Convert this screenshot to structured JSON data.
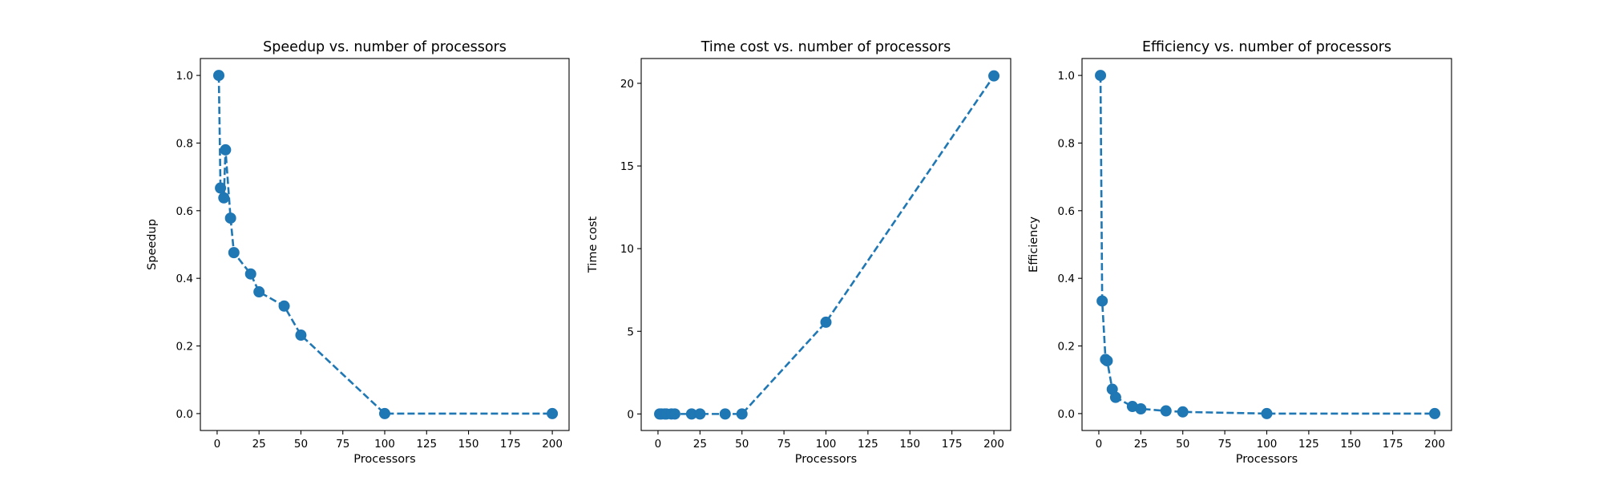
{
  "chart_data": [
    {
      "type": "line",
      "title": "Speedup vs. number of processors",
      "xlabel": "Processors",
      "ylabel": "Speedup",
      "xlim": [
        -10,
        210
      ],
      "ylim": [
        -0.05,
        1.05
      ],
      "xticks": [
        0,
        25,
        50,
        75,
        100,
        125,
        150,
        175,
        200
      ],
      "yticks": [
        0.0,
        0.2,
        0.4,
        0.6,
        0.8,
        1.0
      ],
      "xtick_labels": [
        "0",
        "25",
        "50",
        "75",
        "100",
        "125",
        "150",
        "175",
        "200"
      ],
      "ytick_labels": [
        "0.0",
        "0.2",
        "0.4",
        "0.6",
        "0.8",
        "1.0"
      ],
      "marker": "circle",
      "line_style": "dashed",
      "color": "#1f77b4",
      "grid": false,
      "x": [
        1,
        2,
        4,
        5,
        8,
        10,
        20,
        25,
        40,
        50,
        100,
        200
      ],
      "y": [
        1.0,
        0.667,
        0.638,
        0.78,
        0.578,
        0.476,
        0.413,
        0.36,
        0.318,
        0.232,
        0.0,
        0.0
      ]
    },
    {
      "type": "line",
      "title": "Time cost vs. number of processors",
      "xlabel": "Processors",
      "ylabel": "Time cost",
      "xlim": [
        -10,
        210
      ],
      "ylim": [
        -1.0,
        21.5
      ],
      "xticks": [
        0,
        25,
        50,
        75,
        100,
        125,
        150,
        175,
        200
      ],
      "yticks": [
        0,
        5,
        10,
        15,
        20
      ],
      "xtick_labels": [
        "0",
        "25",
        "50",
        "75",
        "100",
        "125",
        "150",
        "175",
        "200"
      ],
      "ytick_labels": [
        "0",
        "5",
        "10",
        "15",
        "20"
      ],
      "marker": "circle",
      "line_style": "dashed",
      "color": "#1f77b4",
      "grid": false,
      "x": [
        1,
        2,
        4,
        5,
        8,
        10,
        20,
        25,
        40,
        50,
        100,
        200
      ],
      "y": [
        0.0,
        0.0,
        0.0,
        0.0,
        0.0,
        0.0,
        0.0,
        0.0,
        0.0,
        0.0,
        5.55,
        20.45
      ]
    },
    {
      "type": "line",
      "title": "Efficiency vs. number of processors",
      "xlabel": "Processors",
      "ylabel": "Efficiency",
      "xlim": [
        -10,
        210
      ],
      "ylim": [
        -0.05,
        1.05
      ],
      "xticks": [
        0,
        25,
        50,
        75,
        100,
        125,
        150,
        175,
        200
      ],
      "yticks": [
        0.0,
        0.2,
        0.4,
        0.6,
        0.8,
        1.0
      ],
      "xtick_labels": [
        "0",
        "25",
        "50",
        "75",
        "100",
        "125",
        "150",
        "175",
        "200"
      ],
      "ytick_labels": [
        "0.0",
        "0.2",
        "0.4",
        "0.6",
        "0.8",
        "1.0"
      ],
      "marker": "circle",
      "line_style": "dashed",
      "color": "#1f77b4",
      "grid": false,
      "x": [
        1,
        2,
        4,
        5,
        8,
        10,
        20,
        25,
        40,
        50,
        100,
        200
      ],
      "y": [
        1.0,
        0.333,
        0.16,
        0.156,
        0.072,
        0.048,
        0.021,
        0.014,
        0.008,
        0.005,
        0.0,
        0.0
      ]
    }
  ]
}
